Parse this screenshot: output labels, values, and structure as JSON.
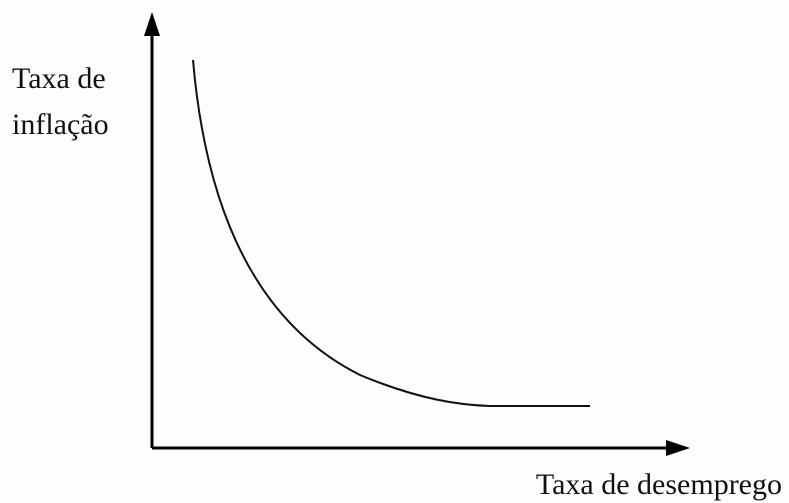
{
  "y_axis_label": [
    "Taxa de",
    "inflação"
  ],
  "x_axis_label": "Taxa de desemprego"
}
